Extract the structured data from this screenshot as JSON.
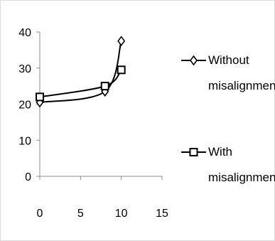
{
  "chart_data": {
    "type": "line",
    "x_ticks": [
      0,
      5,
      10,
      15
    ],
    "y_ticks": [
      0,
      10,
      20,
      30,
      40
    ],
    "xlim": [
      0,
      15
    ],
    "ylim": [
      0,
      40
    ],
    "series": [
      {
        "name": "Without misalignment",
        "marker": "diamond",
        "points": [
          {
            "x": 0,
            "y": 20.5
          },
          {
            "x": 8,
            "y": 23.5
          },
          {
            "x": 10,
            "y": 37.5
          }
        ]
      },
      {
        "name": "With misalignment",
        "marker": "square",
        "points": [
          {
            "x": 0,
            "y": 22
          },
          {
            "x": 8,
            "y": 25
          },
          {
            "x": 10,
            "y": 29.5
          }
        ]
      }
    ],
    "legend": [
      {
        "line1": "Without",
        "line2": "misalignment"
      },
      {
        "line1": "With",
        "line2": "misalignment"
      }
    ]
  }
}
